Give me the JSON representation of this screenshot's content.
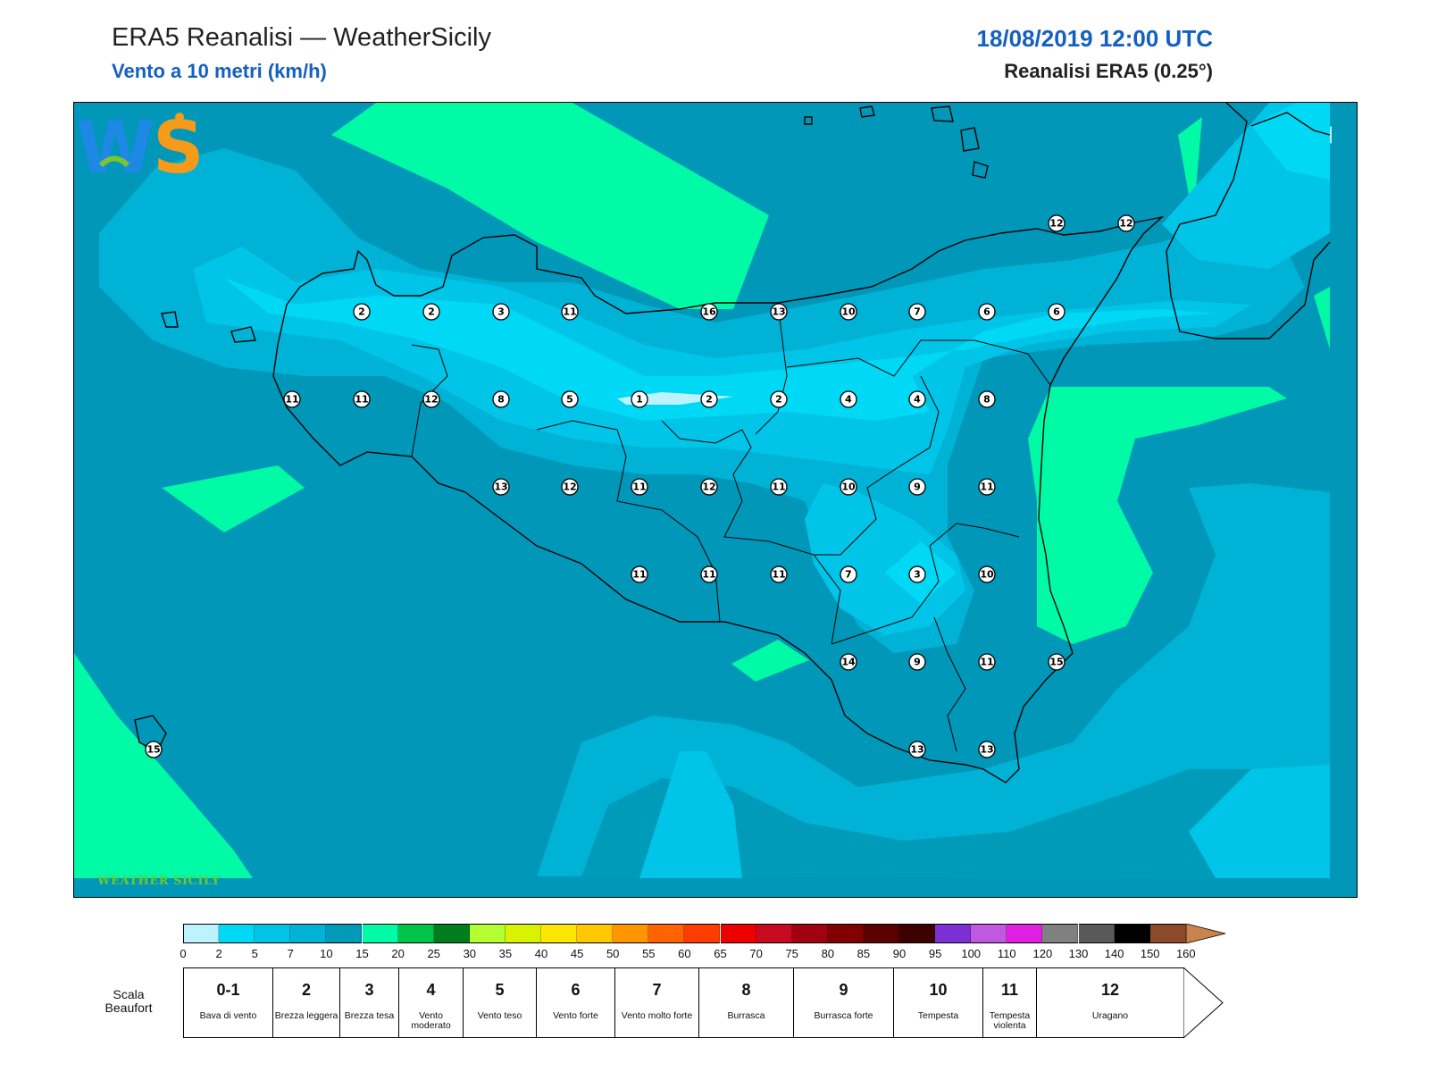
{
  "header": {
    "title": "ERA5 Reanalisi — WeatherSicily",
    "subtitle": "Vento a 10 metri (km/h)",
    "datetime": "18/08/2019 12:00 UTC",
    "source": "Reanalisi ERA5 (0.25°)"
  },
  "logo": {
    "icon": "ws-logo-icon",
    "text": "WEATHER SICILY",
    "colors": [
      "#1e88e5",
      "#7dc52f",
      "#f59a1b"
    ]
  },
  "map": {
    "background_color": "#0097b8",
    "wind_stations_kmh": [
      [
        12,
        12
      ],
      [
        2,
        2,
        3,
        11,
        16,
        13,
        10,
        7,
        6,
        6
      ],
      [
        11,
        11,
        12,
        8,
        5,
        1,
        2,
        2,
        4,
        4,
        8
      ],
      [
        13,
        12,
        11,
        12,
        11,
        10,
        9,
        11
      ],
      [
        11,
        11,
        11,
        7,
        3,
        10
      ],
      [
        14,
        9,
        11,
        15
      ],
      [
        15,
        13,
        13
      ]
    ]
  },
  "colorbar": {
    "colors": [
      "#bdf3ff",
      "#00d9f5",
      "#00c5e8",
      "#00b2d5",
      "#009bb8",
      "#00faa5",
      "#00c44a",
      "#007e1e",
      "#b4ff32",
      "#d9f200",
      "#ffe600",
      "#ffc800",
      "#ff9600",
      "#ff6400",
      "#ff3c00",
      "#ec0000",
      "#c80a20",
      "#a00010",
      "#800000",
      "#5a0000",
      "#3c0000",
      "#7c2fd5",
      "#c058e0",
      "#e020e0",
      "#808080",
      "#595959",
      "#000000",
      "#8c4a2a",
      "#c8844c"
    ],
    "labels": [
      "0",
      "2",
      "5",
      "7",
      "10",
      "15",
      "20",
      "25",
      "30",
      "35",
      "40",
      "45",
      "50",
      "55",
      "60",
      "65",
      "70",
      "75",
      "80",
      "85",
      "90",
      "95",
      "100",
      "110",
      "120",
      "130",
      "140",
      "150",
      "160"
    ]
  },
  "beaufort": {
    "label": "Scala Beaufort",
    "cells": [
      {
        "num": "0-1",
        "text": "Bava di vento"
      },
      {
        "num": "2",
        "text": "Brezza leggera"
      },
      {
        "num": "3",
        "text": "Brezza tesa"
      },
      {
        "num": "4",
        "text": "Vento moderato"
      },
      {
        "num": "5",
        "text": "Vento teso"
      },
      {
        "num": "6",
        "text": "Vento forte"
      },
      {
        "num": "7",
        "text": "Vento molto forte"
      },
      {
        "num": "8",
        "text": "Burrasca"
      },
      {
        "num": "9",
        "text": "Burrasca forte"
      },
      {
        "num": "10",
        "text": "Tempesta"
      },
      {
        "num": "11",
        "text": "Tempesta violenta"
      },
      {
        "num": "12",
        "text": "Uragano"
      }
    ]
  }
}
